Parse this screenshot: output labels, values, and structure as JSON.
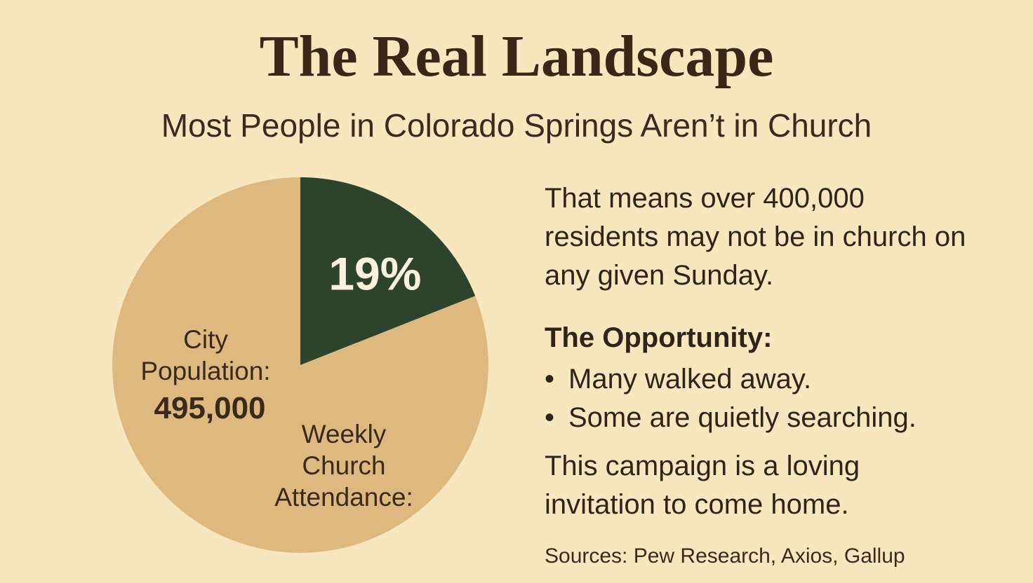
{
  "chart_data": {
    "type": "pie",
    "title": "The Real Landscape",
    "subtitle": "Most People in Colorado Springs Aren’t in Church",
    "values": [
      19,
      81
    ],
    "value_labels": [
      "19%",
      null
    ],
    "colors": [
      "#2e432c",
      "#ddb97f"
    ],
    "annotations": [
      "City Population:",
      "495,000",
      "Weekly Church Attendance:"
    ]
  },
  "panel": {
    "intro": "That means over 400,000 residents may not be in church on any given Sunday.",
    "heading": "The Opportunity:",
    "bullets": [
      "Many walked away.",
      "Some are quietly searching."
    ],
    "closing": "This campaign is a loving invitation to come home.",
    "sources": "Sources: Pew Research, Axios, Gallup"
  }
}
